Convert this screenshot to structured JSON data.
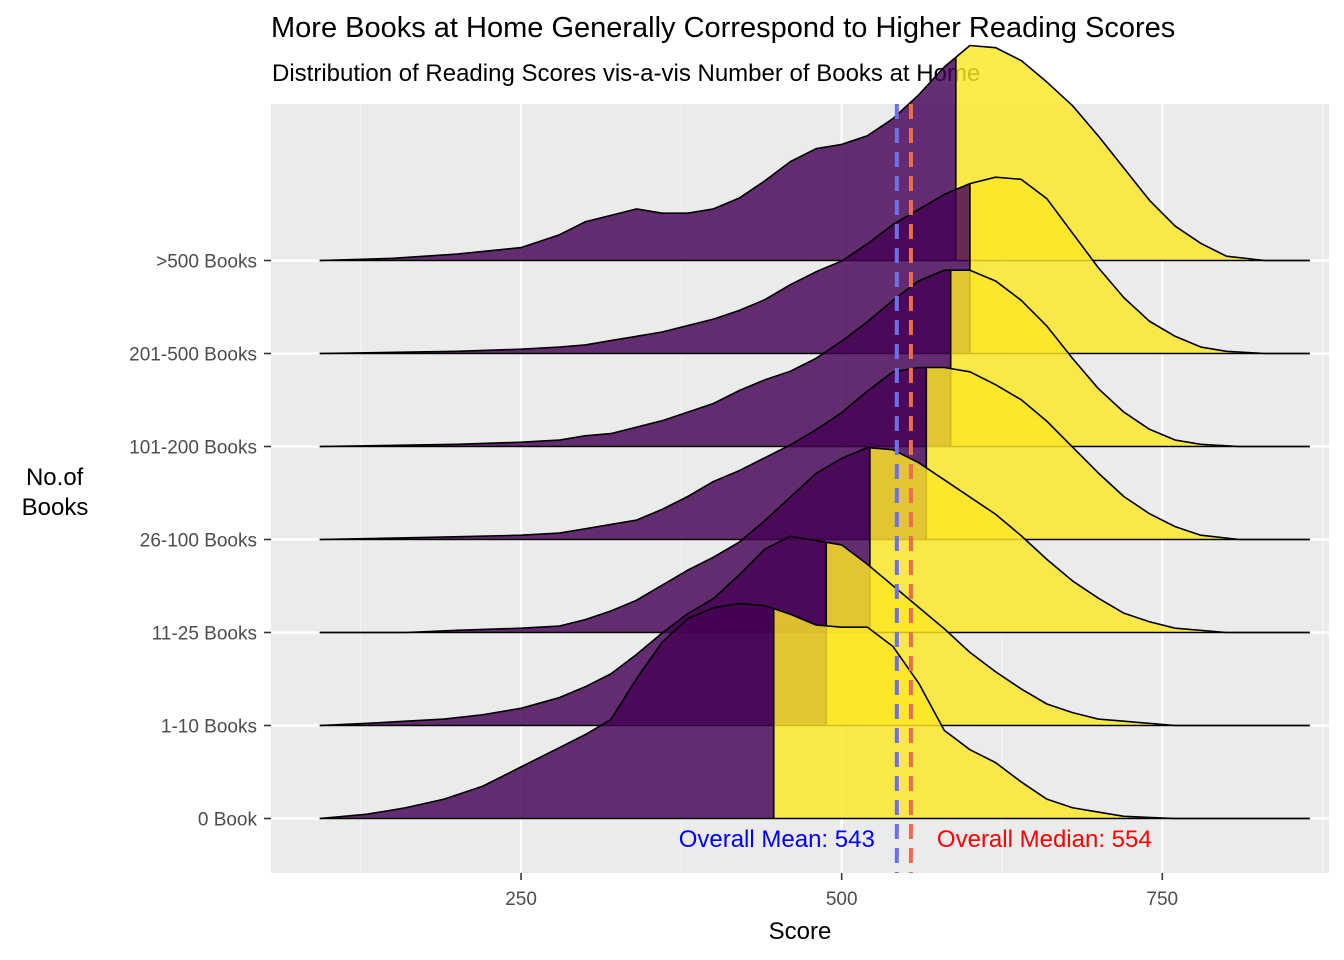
{
  "chart_data": {
    "type": "ridgeline",
    "title": "More Books at Home Generally Correspond to Higher Reading Scores",
    "subtitle": "Distribution of Reading Scores vis-a-vis Number of Books at Home",
    "xlabel": "Score",
    "ylabel": "No.of\nBooks",
    "xlim": [
      55,
      880
    ],
    "x_ticks": [
      250,
      500,
      750
    ],
    "grid": true,
    "fill_low": "#440154",
    "fill_high": "#FDE725",
    "groups": [
      {
        "label": "0 Book",
        "median": 447,
        "density": [
          [
            93,
            0.0
          ],
          [
            130,
            0.02
          ],
          [
            160,
            0.05
          ],
          [
            190,
            0.09
          ],
          [
            220,
            0.15
          ],
          [
            250,
            0.24
          ],
          [
            280,
            0.33
          ],
          [
            300,
            0.39
          ],
          [
            320,
            0.46
          ],
          [
            340,
            0.65
          ],
          [
            360,
            0.82
          ],
          [
            380,
            0.93
          ],
          [
            400,
            0.98
          ],
          [
            420,
            1.0
          ],
          [
            440,
            0.99
          ],
          [
            460,
            0.95
          ],
          [
            480,
            0.9
          ],
          [
            500,
            0.89
          ],
          [
            520,
            0.89
          ],
          [
            540,
            0.8
          ],
          [
            560,
            0.63
          ],
          [
            580,
            0.41
          ],
          [
            600,
            0.32
          ],
          [
            620,
            0.26
          ],
          [
            640,
            0.17
          ],
          [
            660,
            0.09
          ],
          [
            680,
            0.05
          ],
          [
            700,
            0.03
          ],
          [
            720,
            0.01
          ],
          [
            760,
            0.0
          ],
          [
            865,
            0.0
          ]
        ]
      },
      {
        "label": "1-10 Books",
        "median": 488,
        "density": [
          [
            93,
            0.0
          ],
          [
            130,
            0.01
          ],
          [
            160,
            0.02
          ],
          [
            190,
            0.03
          ],
          [
            220,
            0.05
          ],
          [
            250,
            0.08
          ],
          [
            280,
            0.13
          ],
          [
            300,
            0.18
          ],
          [
            320,
            0.24
          ],
          [
            340,
            0.33
          ],
          [
            360,
            0.43
          ],
          [
            380,
            0.52
          ],
          [
            400,
            0.59
          ],
          [
            420,
            0.7
          ],
          [
            440,
            0.82
          ],
          [
            460,
            0.88
          ],
          [
            480,
            0.86
          ],
          [
            500,
            0.84
          ],
          [
            520,
            0.75
          ],
          [
            540,
            0.65
          ],
          [
            560,
            0.55
          ],
          [
            580,
            0.45
          ],
          [
            600,
            0.34
          ],
          [
            620,
            0.25
          ],
          [
            640,
            0.17
          ],
          [
            660,
            0.1
          ],
          [
            680,
            0.06
          ],
          [
            700,
            0.03
          ],
          [
            720,
            0.02
          ],
          [
            760,
            0.0
          ],
          [
            865,
            0.0
          ]
        ]
      },
      {
        "label": "11-25 Books",
        "median": 522,
        "density": [
          [
            93,
            0.0
          ],
          [
            160,
            0.0
          ],
          [
            200,
            0.01
          ],
          [
            250,
            0.02
          ],
          [
            280,
            0.03
          ],
          [
            300,
            0.06
          ],
          [
            320,
            0.1
          ],
          [
            340,
            0.15
          ],
          [
            360,
            0.22
          ],
          [
            380,
            0.29
          ],
          [
            400,
            0.35
          ],
          [
            420,
            0.42
          ],
          [
            440,
            0.52
          ],
          [
            460,
            0.63
          ],
          [
            480,
            0.74
          ],
          [
            500,
            0.81
          ],
          [
            520,
            0.86
          ],
          [
            540,
            0.85
          ],
          [
            560,
            0.79
          ],
          [
            580,
            0.71
          ],
          [
            600,
            0.63
          ],
          [
            620,
            0.55
          ],
          [
            640,
            0.45
          ],
          [
            660,
            0.34
          ],
          [
            680,
            0.24
          ],
          [
            700,
            0.16
          ],
          [
            720,
            0.09
          ],
          [
            740,
            0.05
          ],
          [
            760,
            0.02
          ],
          [
            800,
            0.0
          ],
          [
            865,
            0.0
          ]
        ]
      },
      {
        "label": "26-100 Books",
        "median": 566,
        "density": [
          [
            93,
            0.0
          ],
          [
            180,
            0.01
          ],
          [
            250,
            0.02
          ],
          [
            280,
            0.03
          ],
          [
            300,
            0.05
          ],
          [
            320,
            0.07
          ],
          [
            340,
            0.09
          ],
          [
            360,
            0.14
          ],
          [
            380,
            0.2
          ],
          [
            400,
            0.27
          ],
          [
            420,
            0.32
          ],
          [
            440,
            0.38
          ],
          [
            460,
            0.44
          ],
          [
            480,
            0.51
          ],
          [
            500,
            0.59
          ],
          [
            520,
            0.69
          ],
          [
            540,
            0.78
          ],
          [
            560,
            0.8
          ],
          [
            580,
            0.8
          ],
          [
            600,
            0.78
          ],
          [
            620,
            0.72
          ],
          [
            640,
            0.65
          ],
          [
            660,
            0.55
          ],
          [
            680,
            0.43
          ],
          [
            700,
            0.31
          ],
          [
            720,
            0.2
          ],
          [
            740,
            0.12
          ],
          [
            760,
            0.06
          ],
          [
            780,
            0.02
          ],
          [
            810,
            0.0
          ],
          [
            865,
            0.0
          ]
        ]
      },
      {
        "label": "101-200 Books",
        "median": 585,
        "density": [
          [
            93,
            0.0
          ],
          [
            200,
            0.01
          ],
          [
            250,
            0.02
          ],
          [
            280,
            0.03
          ],
          [
            300,
            0.05
          ],
          [
            320,
            0.06
          ],
          [
            340,
            0.09
          ],
          [
            360,
            0.12
          ],
          [
            380,
            0.16
          ],
          [
            400,
            0.2
          ],
          [
            420,
            0.26
          ],
          [
            440,
            0.31
          ],
          [
            460,
            0.35
          ],
          [
            480,
            0.41
          ],
          [
            500,
            0.49
          ],
          [
            520,
            0.58
          ],
          [
            540,
            0.68
          ],
          [
            560,
            0.77
          ],
          [
            580,
            0.82
          ],
          [
            600,
            0.82
          ],
          [
            620,
            0.77
          ],
          [
            640,
            0.68
          ],
          [
            660,
            0.56
          ],
          [
            680,
            0.41
          ],
          [
            700,
            0.27
          ],
          [
            720,
            0.16
          ],
          [
            740,
            0.08
          ],
          [
            760,
            0.03
          ],
          [
            780,
            0.01
          ],
          [
            810,
            0.0
          ],
          [
            865,
            0.0
          ]
        ]
      },
      {
        "label": "201-500 Books",
        "median": 600,
        "density": [
          [
            93,
            0.0
          ],
          [
            200,
            0.01
          ],
          [
            250,
            0.02
          ],
          [
            280,
            0.03
          ],
          [
            300,
            0.04
          ],
          [
            320,
            0.06
          ],
          [
            340,
            0.08
          ],
          [
            360,
            0.1
          ],
          [
            380,
            0.13
          ],
          [
            400,
            0.16
          ],
          [
            420,
            0.2
          ],
          [
            440,
            0.25
          ],
          [
            460,
            0.32
          ],
          [
            480,
            0.38
          ],
          [
            500,
            0.43
          ],
          [
            520,
            0.51
          ],
          [
            540,
            0.6
          ],
          [
            560,
            0.67
          ],
          [
            580,
            0.74
          ],
          [
            600,
            0.79
          ],
          [
            620,
            0.82
          ],
          [
            640,
            0.81
          ],
          [
            660,
            0.72
          ],
          [
            680,
            0.56
          ],
          [
            700,
            0.4
          ],
          [
            720,
            0.26
          ],
          [
            740,
            0.15
          ],
          [
            760,
            0.08
          ],
          [
            780,
            0.03
          ],
          [
            800,
            0.01
          ],
          [
            830,
            0.0
          ],
          [
            865,
            0.0
          ]
        ]
      },
      {
        "label": ">500 Books",
        "median": 589,
        "density": [
          [
            93,
            0.0
          ],
          [
            150,
            0.01
          ],
          [
            200,
            0.03
          ],
          [
            250,
            0.06
          ],
          [
            280,
            0.12
          ],
          [
            300,
            0.18
          ],
          [
            320,
            0.21
          ],
          [
            340,
            0.24
          ],
          [
            360,
            0.22
          ],
          [
            380,
            0.22
          ],
          [
            400,
            0.24
          ],
          [
            420,
            0.29
          ],
          [
            440,
            0.37
          ],
          [
            460,
            0.46
          ],
          [
            480,
            0.52
          ],
          [
            500,
            0.54
          ],
          [
            520,
            0.58
          ],
          [
            540,
            0.66
          ],
          [
            560,
            0.77
          ],
          [
            580,
            0.9
          ],
          [
            600,
            1.0
          ],
          [
            620,
            0.99
          ],
          [
            640,
            0.93
          ],
          [
            660,
            0.83
          ],
          [
            680,
            0.72
          ],
          [
            700,
            0.58
          ],
          [
            720,
            0.43
          ],
          [
            740,
            0.28
          ],
          [
            760,
            0.16
          ],
          [
            780,
            0.08
          ],
          [
            800,
            0.02
          ],
          [
            830,
            0.0
          ],
          [
            865,
            0.0
          ]
        ]
      }
    ],
    "reference_lines": [
      {
        "name": "Overall Mean",
        "value": 543,
        "color": "#7070e6",
        "label": "Overall Mean: 543",
        "label_color": "#0000ff"
      },
      {
        "name": "Overall Median",
        "value": 554,
        "color": "#f06a50",
        "label": "Overall Median: 554",
        "label_color": "#ff0000"
      }
    ]
  }
}
